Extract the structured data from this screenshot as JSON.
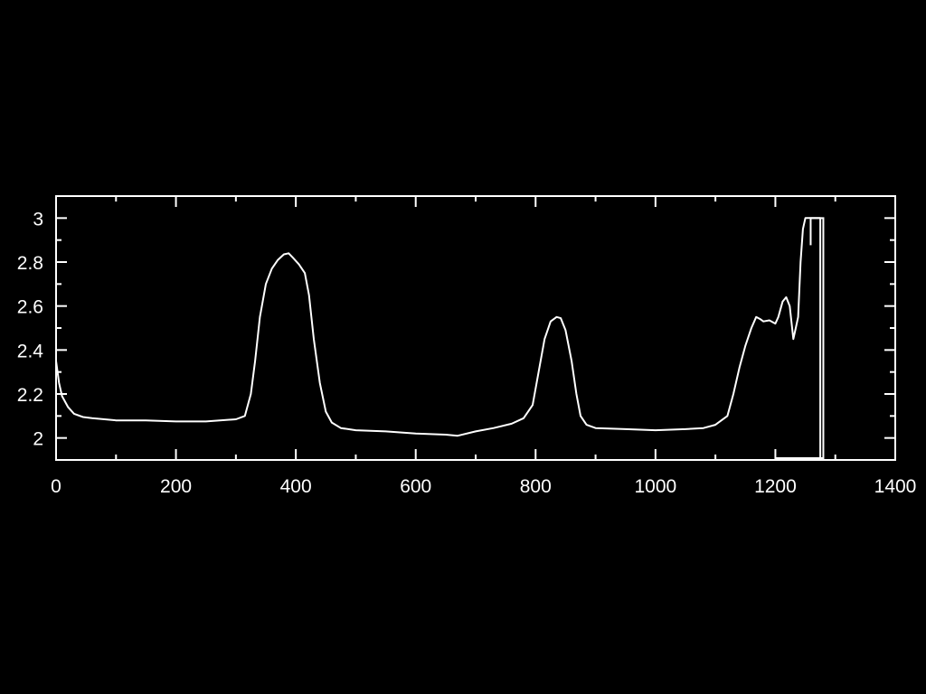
{
  "chart_data": {
    "type": "line",
    "title": "",
    "xlabel": "",
    "ylabel": "",
    "xlim": [
      0,
      1400
    ],
    "ylim": [
      1.9,
      3.1
    ],
    "grid": false,
    "legend": "none",
    "colors": {
      "background": "#000000",
      "foreground": "#ffffff"
    },
    "x_ticks": [
      {
        "value": 0,
        "label": "0"
      },
      {
        "value": 200,
        "label": "200"
      },
      {
        "value": 400,
        "label": "400"
      },
      {
        "value": 600,
        "label": "600"
      },
      {
        "value": 800,
        "label": "800"
      },
      {
        "value": 1000,
        "label": "1000"
      },
      {
        "value": 1200,
        "label": "1200"
      },
      {
        "value": 1400,
        "label": "1400"
      }
    ],
    "x_minor_ticks": [
      100,
      300,
      500,
      700,
      900,
      1100,
      1300
    ],
    "y_ticks": [
      {
        "value": 2.0,
        "label": "2"
      },
      {
        "value": 2.2,
        "label": "2.2"
      },
      {
        "value": 2.4,
        "label": "2.4"
      },
      {
        "value": 2.6,
        "label": "2.6"
      },
      {
        "value": 2.8,
        "label": "2.8"
      },
      {
        "value": 3.0,
        "label": "3"
      }
    ],
    "y_minor_ticks": [
      2.1,
      2.3,
      2.5,
      2.7,
      2.9
    ],
    "series": [
      {
        "values": [
          [
            0,
            2.35
          ],
          [
            5,
            2.25
          ],
          [
            10,
            2.19
          ],
          [
            20,
            2.14
          ],
          [
            30,
            2.11
          ],
          [
            45,
            2.095
          ],
          [
            60,
            2.09
          ],
          [
            100,
            2.08
          ],
          [
            150,
            2.08
          ],
          [
            200,
            2.075
          ],
          [
            250,
            2.075
          ],
          [
            300,
            2.085
          ],
          [
            315,
            2.1
          ],
          [
            325,
            2.2
          ],
          [
            332,
            2.35
          ],
          [
            340,
            2.55
          ],
          [
            350,
            2.7
          ],
          [
            360,
            2.77
          ],
          [
            370,
            2.81
          ],
          [
            380,
            2.835
          ],
          [
            388,
            2.84
          ],
          [
            395,
            2.82
          ],
          [
            405,
            2.79
          ],
          [
            415,
            2.75
          ],
          [
            422,
            2.65
          ],
          [
            430,
            2.45
          ],
          [
            440,
            2.25
          ],
          [
            450,
            2.12
          ],
          [
            460,
            2.07
          ],
          [
            475,
            2.045
          ],
          [
            500,
            2.035
          ],
          [
            550,
            2.03
          ],
          [
            600,
            2.02
          ],
          [
            650,
            2.015
          ],
          [
            670,
            2.01
          ],
          [
            700,
            2.03
          ],
          [
            730,
            2.045
          ],
          [
            760,
            2.065
          ],
          [
            780,
            2.09
          ],
          [
            795,
            2.15
          ],
          [
            805,
            2.3
          ],
          [
            815,
            2.45
          ],
          [
            825,
            2.53
          ],
          [
            835,
            2.55
          ],
          [
            842,
            2.545
          ],
          [
            850,
            2.49
          ],
          [
            860,
            2.35
          ],
          [
            868,
            2.2
          ],
          [
            875,
            2.1
          ],
          [
            885,
            2.06
          ],
          [
            900,
            2.045
          ],
          [
            950,
            2.04
          ],
          [
            1000,
            2.035
          ],
          [
            1050,
            2.04
          ],
          [
            1080,
            2.045
          ],
          [
            1100,
            2.06
          ],
          [
            1120,
            2.1
          ],
          [
            1130,
            2.2
          ],
          [
            1140,
            2.32
          ],
          [
            1150,
            2.42
          ],
          [
            1160,
            2.5
          ],
          [
            1168,
            2.55
          ],
          [
            1175,
            2.54
          ],
          [
            1180,
            2.53
          ],
          [
            1190,
            2.535
          ],
          [
            1200,
            2.52
          ],
          [
            1205,
            2.55
          ],
          [
            1212,
            2.62
          ],
          [
            1218,
            2.64
          ],
          [
            1224,
            2.6
          ],
          [
            1230,
            2.45
          ],
          [
            1234,
            2.5
          ],
          [
            1238,
            2.55
          ],
          [
            1242,
            2.8
          ],
          [
            1246,
            2.95
          ],
          [
            1250,
            3.0
          ],
          [
            1260,
            3.0
          ],
          [
            1270,
            3.0
          ],
          [
            1275,
            3.0
          ],
          [
            1275,
            1.9
          ]
        ]
      }
    ],
    "outline_box": {
      "x": [
        1200,
        1280
      ],
      "y": [
        1.9,
        3.0
      ]
    }
  }
}
